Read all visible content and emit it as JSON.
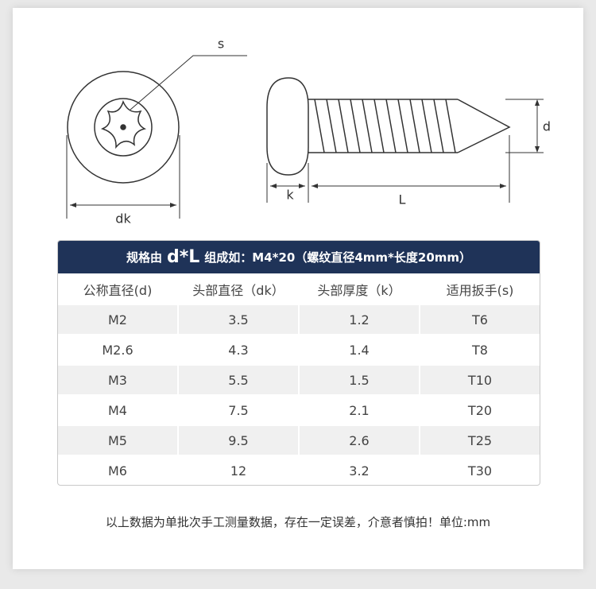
{
  "diagram": {
    "labels": {
      "s": "s",
      "dk": "dk",
      "k": "k",
      "L": "L",
      "d": "d"
    }
  },
  "table": {
    "title_prefix": "规格由",
    "title_emphasis": "d*L",
    "title_suffix": "组成如：M4*20（螺纹直径4mm*长度20mm）",
    "columns": [
      "公称直径(d)",
      "头部直径（dk）",
      "头部厚度（k）",
      "适用扳手(s)"
    ],
    "rows": [
      [
        "M2",
        "3.5",
        "1.2",
        "T6"
      ],
      [
        "M2.6",
        "4.3",
        "1.4",
        "T8"
      ],
      [
        "M3",
        "5.5",
        "1.5",
        "T10"
      ],
      [
        "M4",
        "7.5",
        "2.1",
        "T20"
      ],
      [
        "M5",
        "9.5",
        "2.6",
        "T25"
      ],
      [
        "M6",
        "12",
        "3.2",
        "T30"
      ]
    ]
  },
  "footnote": "以上数据为单批次手工测量数据，存在一定误差，介意者慎拍！单位:mm"
}
